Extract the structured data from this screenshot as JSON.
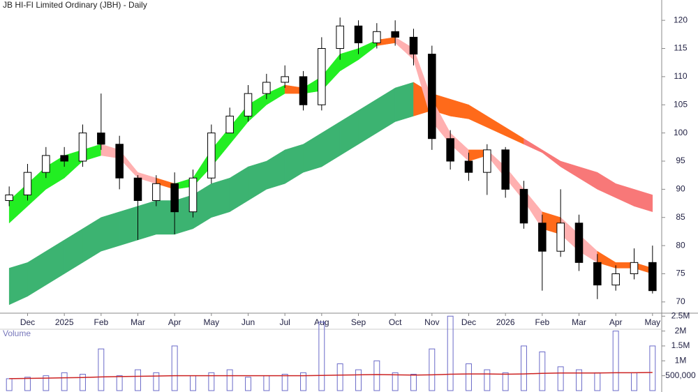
{
  "chart_data": {
    "type": "candlestick",
    "title": "JB HI-FI Limited Ordinary (JBH) - Daily",
    "categories": [
      null,
      "Dec",
      null,
      "2025",
      null,
      "Feb",
      null,
      "Mar",
      null,
      "Apr",
      null,
      "May",
      null,
      "Jun",
      null,
      "Jul",
      null,
      "Aug",
      null,
      "Sep",
      null,
      "Oct",
      null,
      "Nov",
      null,
      "Dec",
      null,
      "2026",
      null,
      "Feb",
      null,
      "Mar",
      null,
      "Apr",
      null,
      "May"
    ],
    "open": [
      88,
      89,
      93,
      96,
      95,
      100,
      98,
      92,
      88,
      91,
      86,
      92,
      100,
      103,
      107,
      109,
      110,
      105,
      115,
      119,
      116,
      118,
      117,
      114,
      99,
      95,
      93,
      97,
      90,
      84,
      79,
      84,
      77,
      73,
      75,
      77
    ],
    "high": [
      90.5,
      94.5,
      97.5,
      97.5,
      101.5,
      107,
      99.5,
      92.5,
      92.5,
      93,
      93.5,
      101.5,
      104.5,
      108.5,
      110.5,
      112,
      111,
      117,
      120.5,
      120,
      119.5,
      120,
      118.5,
      115.5,
      100.5,
      96.5,
      98,
      97.5,
      91.5,
      85.5,
      90,
      85.5,
      78.5,
      76.5,
      79.5,
      80
    ],
    "low": [
      87,
      88,
      92,
      94,
      94,
      97,
      90,
      81,
      87,
      82,
      85,
      91,
      100,
      102,
      106,
      108,
      104,
      104,
      113,
      114,
      115,
      115.5,
      112,
      97,
      93.5,
      91.5,
      89,
      88.5,
      83,
      72,
      78,
      75.5,
      70.5,
      72,
      74,
      71.5
    ],
    "close": [
      89,
      93,
      96,
      95,
      100,
      98,
      92,
      88,
      91,
      86,
      92,
      100,
      103,
      107,
      109,
      110,
      105,
      115,
      119,
      116,
      118,
      117,
      114,
      99,
      95,
      93,
      97,
      90,
      84,
      79,
      84,
      77,
      73,
      75,
      77,
      72
    ],
    "up_color": "#ffffff",
    "down_color": "#000000",
    "ylim": [
      68,
      122
    ],
    "yticks": [
      70,
      75,
      80,
      85,
      90,
      95,
      100,
      105,
      110,
      115,
      120
    ],
    "bands": [
      {
        "upper": [
          76,
          77,
          79,
          81,
          83,
          85,
          86,
          87,
          88,
          88,
          89,
          91,
          92,
          94,
          95,
          97,
          98,
          100,
          102,
          104,
          106,
          108,
          109,
          107,
          106,
          105,
          103,
          101,
          99,
          97,
          95,
          94,
          93,
          91,
          90,
          89
        ],
        "lower": [
          69.5,
          71,
          73,
          75,
          77,
          79,
          80,
          81,
          82,
          82,
          83,
          85,
          86,
          88,
          90,
          91,
          93,
          94,
          96,
          98,
          100,
          102,
          103,
          104,
          103,
          102.5,
          101,
          99.5,
          98,
          96.5,
          94,
          92,
          90,
          88.5,
          87,
          86
        ],
        "colors": [
          "#3cb371",
          "#3cb371",
          "#3cb371",
          "#3cb371",
          "#3cb371",
          "#3cb371",
          "#3cb371",
          "#3cb371",
          "#3cb371",
          "#3cb371",
          "#3cb371",
          "#3cb371",
          "#3cb371",
          "#3cb371",
          "#3cb371",
          "#3cb371",
          "#3cb371",
          "#3cb371",
          "#3cb371",
          "#3cb371",
          "#3cb371",
          "#3cb371",
          "#ff6a1a",
          "#ff6a1a",
          "#ff6a1a",
          "#ff6a1a",
          "#ff6a1a",
          "#ff6a1a",
          "#f87878",
          "#f87878",
          "#f87878",
          "#f87878",
          "#f87878",
          "#f87878",
          "#f87878",
          "#f87878"
        ]
      },
      {
        "upper": [
          88,
          91,
          94,
          96,
          97,
          98,
          97,
          93,
          92,
          91,
          92,
          97,
          101,
          105,
          107,
          108.5,
          108,
          110,
          114,
          115,
          116.5,
          117,
          115,
          106,
          100,
          97,
          97,
          94,
          90,
          86,
          85,
          82,
          79,
          77,
          77,
          76
        ],
        "lower": [
          84,
          87,
          90,
          92,
          95,
          96,
          95.5,
          92,
          91,
          90,
          90.5,
          94,
          98,
          102,
          105,
          107,
          107,
          107.5,
          111,
          113,
          115.5,
          116,
          113,
          102,
          98,
          95,
          96,
          92,
          88,
          83,
          82,
          79,
          77,
          76,
          76,
          75
        ],
        "colors": [
          "#22ee22",
          "#22ee22",
          "#22ee22",
          "#22ee22",
          "#22ee22",
          "#ffb0b0",
          "#ffb0b0",
          "#ffb0b0",
          "#ff6a1a",
          "#22ee22",
          "#22ee22",
          "#22ee22",
          "#22ee22",
          "#22ee22",
          "#22ee22",
          "#ff6a1a",
          "#22ee22",
          "#22ee22",
          "#22ee22",
          "#22ee22",
          "#ff6a1a",
          "#ffb0b0",
          "#ffb0b0",
          "#ffb0b0",
          "#ffb0b0",
          "#ff6a1a",
          "#ffb0b0",
          "#ffb0b0",
          "#ffb0b0",
          "#ff6a1a",
          "#ffb0b0",
          "#ffb0b0",
          "#ff6a1a",
          "#ff6a1a",
          "#ff6a1a",
          "#ff6a1a"
        ]
      }
    ],
    "volume": {
      "title": "Volume",
      "values": [
        400000,
        450000,
        500000,
        600000,
        550000,
        1400000,
        500000,
        700000,
        600000,
        1500000,
        500000,
        600000,
        700000,
        450000,
        500000,
        550000,
        600000,
        2300000,
        900000,
        700000,
        1000000,
        600000,
        550000,
        1400000,
        2500000,
        900000,
        700000,
        600000,
        1500000,
        1300000,
        800000,
        700000,
        600000,
        2000000,
        600000,
        1500000
      ],
      "average": [
        400000,
        410000,
        420000,
        430000,
        440000,
        460000,
        470000,
        480000,
        490000,
        500000,
        500000,
        500000,
        500000,
        500000,
        500000,
        500000,
        500000,
        510000,
        520000,
        530000,
        540000,
        530000,
        520000,
        530000,
        550000,
        560000,
        560000,
        550000,
        560000,
        580000,
        590000,
        590000,
        590000,
        600000,
        600000,
        610000
      ],
      "color": "#6a6ac8",
      "average_color": "#cc2222",
      "ylim": [
        0,
        2600000
      ],
      "yticks": [
        {
          "value": 500000,
          "label": "500,000"
        },
        {
          "value": 1000000,
          "label": "1M"
        },
        {
          "value": 1500000,
          "label": "1.5M"
        },
        {
          "value": 2000000,
          "label": "2M"
        },
        {
          "value": 2500000,
          "label": "2.5M"
        }
      ]
    }
  }
}
